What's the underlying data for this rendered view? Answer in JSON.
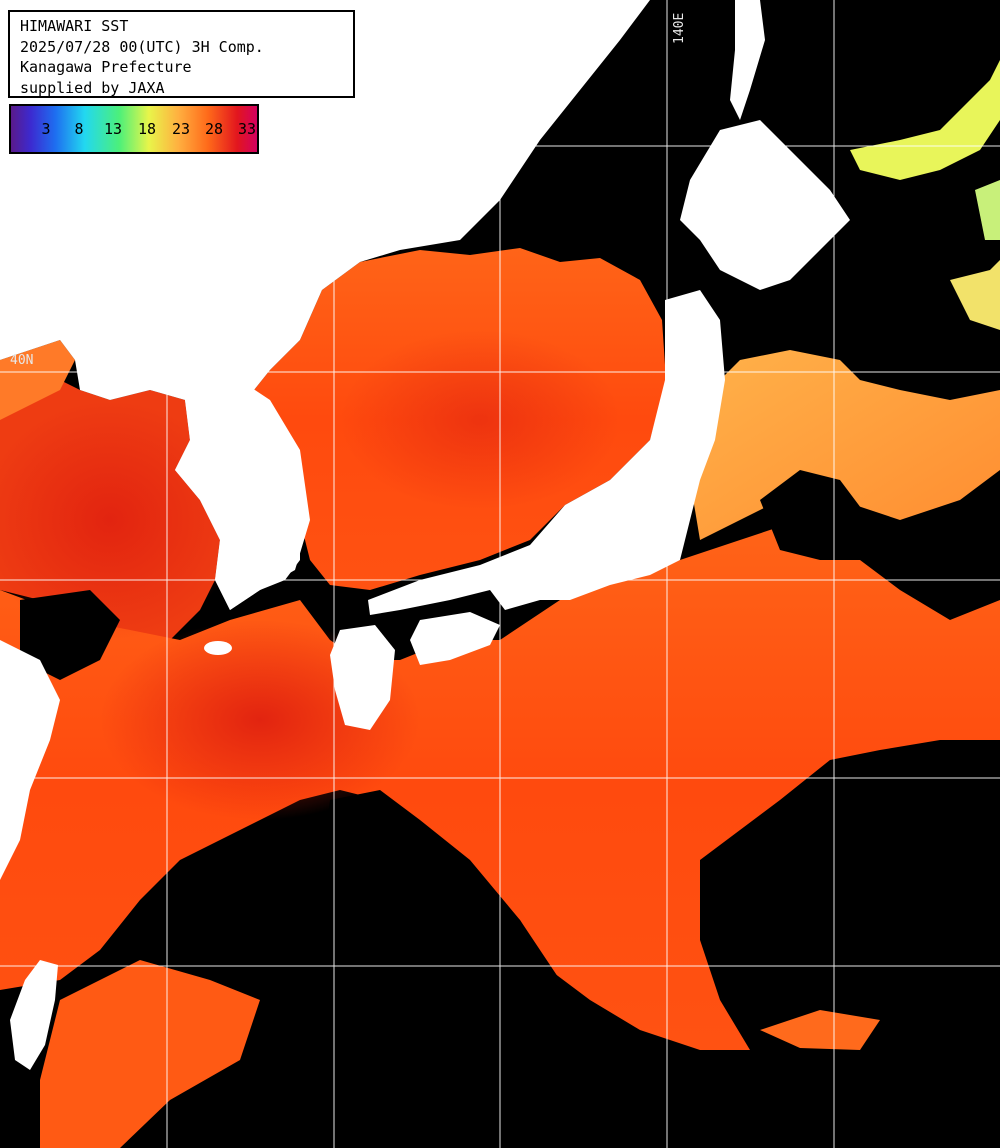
{
  "header": {
    "line1": "HIMAWARI SST",
    "line2": "2025/07/28 00(UTC) 3H Comp.",
    "line3": "Kanagawa Prefecture",
    "line4": "supplied by JAXA"
  },
  "legend": {
    "ticks": [
      "3",
      "8",
      "13",
      "18",
      "23",
      "28",
      "33"
    ]
  },
  "grid_labels": {
    "lon_140": "140E",
    "lat_40": "40N"
  },
  "colors": {
    "land": "#ffffff",
    "cloud": "#000000",
    "sea_warm": "#ff5a10",
    "sea_hot": "#e63010",
    "sea_cool": "#ffa040",
    "grid": "#ffffff"
  }
}
